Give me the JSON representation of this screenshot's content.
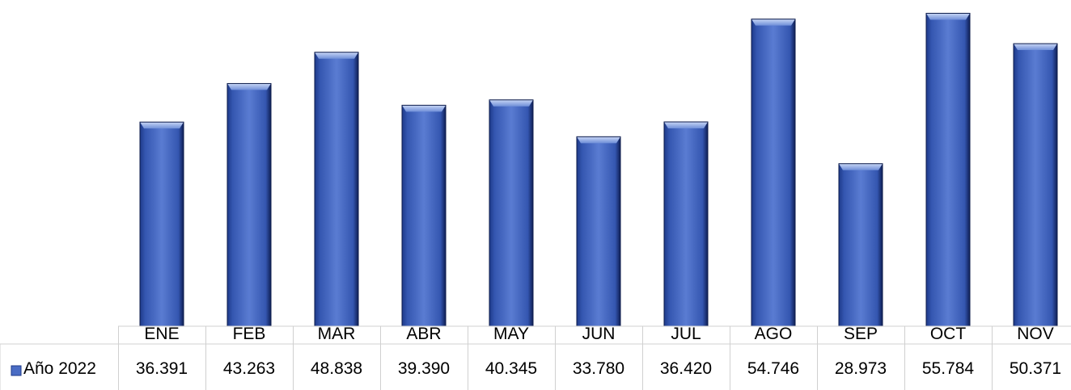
{
  "chart_data": {
    "type": "bar",
    "title": "",
    "xlabel": "",
    "ylabel": "",
    "categories": [
      "ENE",
      "FEB",
      "MAR",
      "ABR",
      "MAY",
      "JUN",
      "JUL",
      "AGO",
      "SEP",
      "OCT",
      "NOV"
    ],
    "series": [
      {
        "name": "Año 2022",
        "values": [
          36391,
          43263,
          48838,
          39390,
          40345,
          33780,
          36420,
          54746,
          28973,
          55784,
          50371
        ],
        "labels": [
          "36.391",
          "43.263",
          "48.838",
          "39.390",
          "40.345",
          "33.780",
          "36.420",
          "54.746",
          "28.973",
          "55.784",
          "50.371"
        ]
      }
    ],
    "ylim": [
      0,
      57000
    ],
    "grid": false,
    "legend": "data-table-left",
    "data_table": true,
    "bar_color": "#4a6cc4"
  }
}
